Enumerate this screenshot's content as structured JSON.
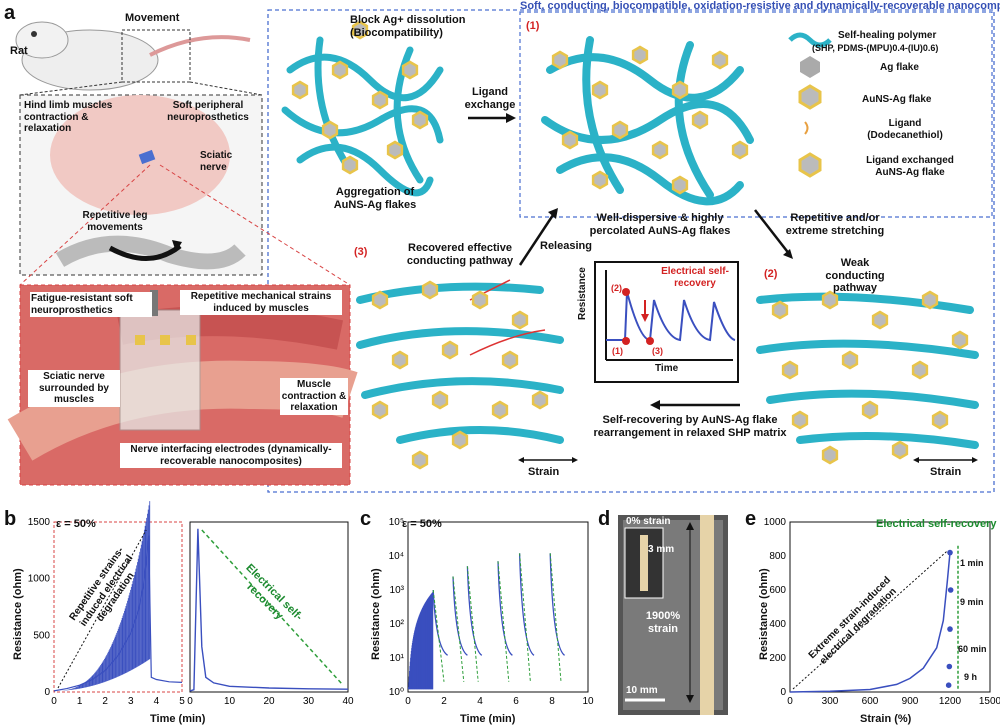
{
  "panel_letters": {
    "a": "a",
    "b": "b",
    "c": "c",
    "d": "d",
    "e": "e"
  },
  "banner": "Soft, conducting, biocompatible, oxidation-resistive and dynamically-recoverable nanocomposite",
  "rat": {
    "rat_label": "Rat",
    "movement": "Movement"
  },
  "inset1": {
    "hind_limb": "Hind limb muscles contraction & relaxation",
    "peripheral": "Soft peripheral neuroprosthetics",
    "sciatic": "Sciatic nerve",
    "repetitive": "Repetitive leg movements"
  },
  "inset2": {
    "fatigue": "Fatigue-resistant soft neuroprosthetics",
    "strains": "Repetitive mechanical strains induced by muscles",
    "surrounded": "Sciatic nerve surrounded by muscles",
    "muscle": "Muscle contraction & relaxation",
    "electrodes": "Nerve interfacing electrodes (dynamically-recoverable nanocomposites)"
  },
  "center": {
    "dissolution": "Block Ag+ dissolution (Biocompatibility)",
    "aggregation": "Aggregation of AuNS-Ag flakes",
    "ligand_exchange": "Ligand exchange",
    "s1": "(1)",
    "s2": "(2)",
    "s3": "(3)",
    "well_dispersive": "Well-dispersive & highly percolated AuNS-Ag flakes",
    "stretch": "Repetitive and/or extreme stretching",
    "releasing": "Releasing",
    "recovered": "Recovered effective conducting pathway",
    "weak": "Weak conducting pathway",
    "self_recovering": "Self-recovering by AuNS-Ag flake rearrangement in relaxed SHP matrix",
    "strain": "Strain"
  },
  "legend": {
    "shp": "Self-healing polymer",
    "shp_formula": "(SHP, PDMS-(MPU)0.4-(IU)0.6)",
    "ag": "Ag flake",
    "auns": "AuNS-Ag flake",
    "ligand": "Ligand (Dodecanethiol)",
    "exchanged": "Ligand exchanged AuNS-Ag flake"
  },
  "mini_plot": {
    "title": "Electrical self-recovery",
    "ylabel": "Resistance",
    "xlabel": "Time",
    "m1": "(1)",
    "m2": "(2)",
    "m3": "(3)"
  },
  "panel_b": {
    "epsilon": "ε = 50%",
    "ylabel": "Resistance (ohm)",
    "xlabel": "Time (min)",
    "annot_degradation": "Repetitive strains-induced electrical degradation",
    "annot_recovery": "Electrical self-recovery"
  },
  "panel_c": {
    "epsilon": "ε = 50%",
    "ylabel": "Resistance (ohm)",
    "xlabel": "Time (min)"
  },
  "panel_d": {
    "zero_strain": "0% strain",
    "three_mm": "3 mm",
    "strain_1900": "1900% strain",
    "ten_mm": "10 mm"
  },
  "panel_e": {
    "title": "Electrical self-recovery",
    "ylabel": "Resistance (ohm)",
    "xlabel": "Strain (%)",
    "annot": "Extreme strain-induced electrical degradation",
    "times": [
      "1 min",
      "9 min",
      "60 min",
      "9 h"
    ]
  },
  "colors": {
    "series": "#3a4fbf",
    "recovery": "#2e9e3a",
    "border_blue": "#4a6fd0",
    "border_red": "#d84444",
    "polymer": "#2bb2c7"
  },
  "chart_data": [
    {
      "type": "line",
      "panel": "b",
      "title": "",
      "xlabel": "Time (min)",
      "ylabel": "Resistance (ohm)",
      "subplots": [
        {
          "xlim": [
            0,
            5
          ],
          "ylim": [
            0,
            1500
          ],
          "xticks": [
            0,
            1,
            2,
            3,
            4,
            5
          ],
          "yticks": [
            0,
            500,
            1000,
            1500
          ],
          "x": [
            0,
            0.5,
            1,
            1.5,
            2,
            2.5,
            3,
            3.3,
            3.5,
            3.6,
            3.7,
            3.8,
            4,
            4.5,
            5
          ],
          "y": [
            10,
            30,
            60,
            110,
            190,
            320,
            520,
            720,
            950,
            1150,
            1380,
            130,
            110,
            90,
            85
          ]
        },
        {
          "xlim": [
            0,
            40
          ],
          "ylim": [
            0,
            1500
          ],
          "xticks": [
            0,
            10,
            20,
            30,
            40
          ],
          "x": [
            0,
            1,
            2,
            3,
            4,
            6,
            10,
            20,
            30,
            40
          ],
          "y": [
            10,
            20,
            1440,
            400,
            130,
            80,
            50,
            35,
            28,
            25
          ]
        }
      ]
    },
    {
      "type": "line",
      "panel": "c",
      "xlabel": "Time (min)",
      "ylabel": "Resistance (ohm)",
      "yscale": "log",
      "ylim": [
        1,
        100000
      ],
      "xlim": [
        0,
        10
      ],
      "xticks": [
        0,
        2,
        4,
        6,
        8,
        10
      ],
      "peaks": [
        {
          "x": 1.4,
          "y": 1000
        },
        {
          "x": 2.5,
          "y": 2500
        },
        {
          "x": 3.3,
          "y": 5000
        },
        {
          "x": 5.0,
          "y": 7000
        },
        {
          "x": 6.2,
          "y": 12000
        },
        {
          "x": 7.9,
          "y": 12000
        }
      ]
    },
    {
      "type": "line",
      "panel": "e",
      "xlabel": "Strain (%)",
      "ylabel": "Resistance (ohm)",
      "xlim": [
        0,
        1500
      ],
      "ylim": [
        0,
        1000
      ],
      "xticks": [
        0,
        300,
        600,
        900,
        1200,
        1500
      ],
      "yticks": [
        0,
        200,
        400,
        600,
        800,
        1000
      ],
      "x": [
        0,
        300,
        600,
        800,
        900,
        1000,
        1100,
        1150,
        1180,
        1200
      ],
      "y": [
        0,
        4,
        15,
        45,
        80,
        140,
        260,
        420,
        650,
        820
      ],
      "recovery_points": [
        {
          "x": 1200,
          "y": 820,
          "label": "1 min"
        },
        {
          "x": 1205,
          "y": 600,
          "label": "9 min"
        },
        {
          "x": 1200,
          "y": 370,
          "label": "60 min"
        },
        {
          "x": 1195,
          "y": 150,
          "label": "9 h"
        },
        {
          "x": 1190,
          "y": 40,
          "label": ""
        }
      ]
    }
  ]
}
